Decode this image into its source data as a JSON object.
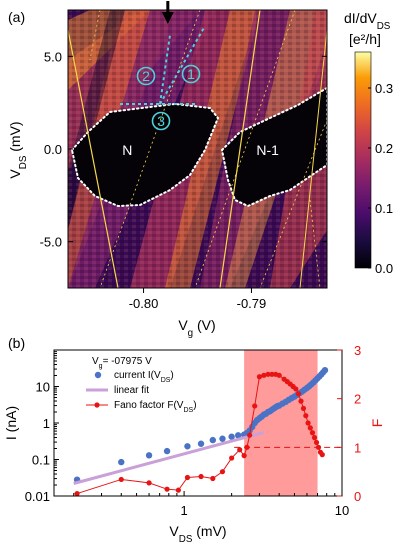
{
  "chart_data": [
    {
      "panel": "(a)",
      "type": "heatmap",
      "xlabel": "V",
      "xlabel_sub": "g",
      "xlabel_unit": " (V)",
      "ylabel": "V",
      "ylabel_sub": "DS",
      "ylabel_unit": " (mV)",
      "xlim": [
        -0.807,
        -0.783
      ],
      "ylim": [
        -7.5,
        7.5
      ],
      "x_ticks": [
        {
          "v": -0.8,
          "label": "-0.80"
        },
        {
          "v": -0.79,
          "label": "-0.79"
        }
      ],
      "y_ticks": [
        {
          "v": 5.0,
          "label": "5.0"
        },
        {
          "v": 0.0,
          "label": "0.0"
        },
        {
          "v": -5.0,
          "label": "-5.0"
        }
      ],
      "colorbar": {
        "title_line1": "dI/dV",
        "title_line1_sub": "DS",
        "title_line2": "[e²/h]",
        "range": [
          0,
          0.36
        ],
        "ticks": [
          {
            "v": 0.0,
            "label": "0.0"
          },
          {
            "v": 0.1,
            "label": "0.1"
          },
          {
            "v": 0.2,
            "label": "0.2"
          },
          {
            "v": 0.3,
            "label": "0.3"
          }
        ],
        "colormap": "inferno"
      },
      "regions": [
        {
          "label": "N",
          "center": [
            -0.8015,
            0.0
          ]
        },
        {
          "label": "N-1",
          "center": [
            -0.7885,
            0.0
          ]
        }
      ],
      "annotations": [
        {
          "label": "1",
          "color": "#4fd1d9"
        },
        {
          "label": "2",
          "color": "#4fd1d9"
        },
        {
          "label": "3",
          "color": "#4fd1d9"
        }
      ],
      "marker": {
        "type": "arrow-down",
        "x": -0.79775
      }
    },
    {
      "panel": "(b)",
      "type": "scatter",
      "xscale": "log",
      "yscale": "log",
      "xlabel": "V",
      "xlabel_sub": "DS",
      "xlabel_unit": " (mV)",
      "ylabel": "I (nA)",
      "y2label": "F",
      "xlim": [
        0.15,
        10
      ],
      "ylim": [
        0.01,
        100
      ],
      "y2lim": [
        0,
        3
      ],
      "x_ticks": [
        {
          "v": 1,
          "label": "1"
        },
        {
          "v": 10,
          "label": "10"
        }
      ],
      "y_ticks": [
        {
          "v": 0.01,
          "label": "0.01"
        },
        {
          "v": 0.1,
          "label": "0.1"
        },
        {
          "v": 1,
          "label": "1"
        },
        {
          "v": 10,
          "label": "10"
        }
      ],
      "y2_ticks": [
        {
          "v": 0,
          "label": "0"
        },
        {
          "v": 1,
          "label": "1"
        },
        {
          "v": 2,
          "label": "2"
        },
        {
          "v": 3,
          "label": "3"
        }
      ],
      "annotation": {
        "text": "V",
        "sub": "g",
        "rest": "= -07975 V"
      },
      "highlight_x": [
        2.4,
        7.0
      ],
      "highlight_color": "#ff7a7a",
      "reference_line_y2": 1,
      "legend_position": "top-left",
      "series": [
        {
          "name": "current I(V",
          "name_sub": "DS",
          "name_end": ")",
          "axis": "left",
          "style": "markers",
          "color": "#4a73c6",
          "x": [
            0.21,
            0.4,
            0.6,
            0.78,
            1.05,
            1.28,
            1.52,
            1.75,
            2.0,
            2.2,
            2.4,
            2.5,
            2.6,
            2.7,
            2.8,
            2.9,
            3.0,
            3.1,
            3.2,
            3.3,
            3.4,
            3.5,
            3.6,
            3.7,
            3.8,
            3.9,
            4.0,
            4.2,
            4.4,
            4.6,
            4.8,
            5.0,
            5.2,
            5.4,
            5.6,
            5.8,
            6.0,
            6.2,
            6.4,
            6.6,
            6.8,
            7.0,
            7.2,
            7.4,
            7.6,
            7.8
          ],
          "y": [
            0.028,
            0.085,
            0.13,
            0.17,
            0.23,
            0.27,
            0.34,
            0.37,
            0.42,
            0.46,
            0.48,
            0.53,
            0.62,
            0.78,
            1.0,
            1.2,
            1.35,
            1.5,
            1.7,
            1.8,
            2.0,
            2.1,
            2.3,
            2.5,
            2.7,
            2.9,
            3.0,
            3.4,
            3.8,
            4.3,
            4.8,
            5.3,
            5.9,
            6.6,
            7.3,
            8.2,
            9.1,
            10.2,
            11.5,
            13.0,
            14.8,
            16.8,
            19.0,
            21.5,
            24.5,
            28.0
          ]
        },
        {
          "name": "linear fit",
          "axis": "left",
          "style": "line",
          "color": "#c9a0d8",
          "x": [
            0.2,
            3.2
          ],
          "y": [
            0.022,
            0.55
          ]
        },
        {
          "name": "Fano factor F(V",
          "name_sub": "DS",
          "name_end": ")",
          "axis": "right",
          "style": "line+markers",
          "color": "#e81313",
          "x": [
            0.21,
            0.4,
            0.6,
            0.78,
            0.92,
            1.05,
            1.28,
            1.52,
            1.75,
            2.0,
            2.25,
            2.4,
            2.5,
            2.6,
            2.8,
            3.0,
            3.2,
            3.4,
            3.6,
            3.8,
            4.0,
            4.3,
            4.5,
            4.7,
            4.9,
            5.1,
            5.3,
            5.5,
            5.7,
            5.9,
            6.1,
            6.3,
            6.5,
            6.7,
            6.9,
            7.1,
            7.3,
            7.5
          ],
          "y": [
            0.05,
            0.34,
            0.27,
            0.14,
            0.12,
            0.38,
            0.4,
            0.36,
            0.5,
            0.78,
            0.95,
            0.83,
            1.0,
            1.25,
            1.85,
            2.45,
            2.48,
            2.5,
            2.5,
            2.5,
            2.48,
            2.4,
            2.35,
            2.3,
            2.25,
            2.2,
            2.1,
            1.95,
            1.8,
            1.65,
            1.5,
            1.4,
            1.3,
            1.2,
            1.1,
            1.0,
            0.9,
            0.85
          ]
        }
      ]
    }
  ]
}
